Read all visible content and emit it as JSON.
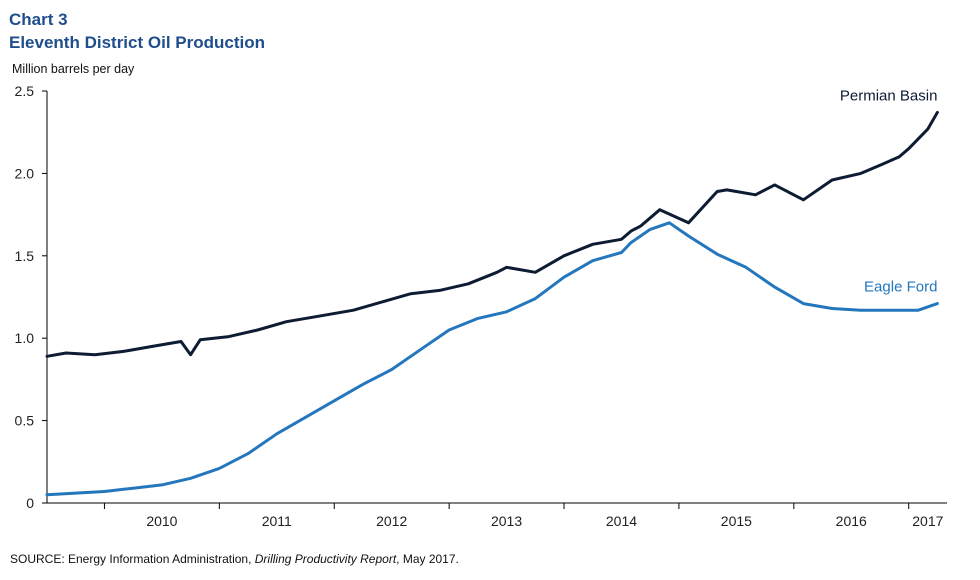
{
  "header": {
    "chart_number": "Chart 3",
    "title": "Eleventh District Oil Production"
  },
  "source": {
    "prefix": "SOURCE: Energy Information Administration, ",
    "report": "Drilling Productivity Report",
    "suffix": ", May 2017."
  },
  "colors": {
    "title": "#1f4e8c",
    "permian": "#0d1b33",
    "eagle_ford": "#2476bd",
    "axis": "#000000"
  },
  "chart_data": {
    "type": "line",
    "title": "Eleventh District Oil Production",
    "ylabel": "Million barrels per day",
    "xlabel": "",
    "ylim": [
      0,
      2.5
    ],
    "yticks": [
      "0",
      "0.5",
      "1.0",
      "1.5",
      "2.0",
      "2.5"
    ],
    "yticks_values": [
      0,
      0.5,
      1.0,
      1.5,
      2.0,
      2.5
    ],
    "xlim": [
      "2009-07",
      "2017-05"
    ],
    "x_categories": [
      "2010",
      "2011",
      "2012",
      "2013",
      "2014",
      "2015",
      "2016",
      "2017"
    ],
    "grid": false,
    "series": [
      {
        "name": "Permian Basin",
        "color": "#0d1b33",
        "x": [
          "2009-07",
          "2009-09",
          "2009-12",
          "2010-03",
          "2010-06",
          "2010-09",
          "2010-10",
          "2010-11",
          "2011-02",
          "2011-05",
          "2011-08",
          "2011-11",
          "2012-03",
          "2012-06",
          "2012-09",
          "2012-12",
          "2013-03",
          "2013-06",
          "2013-07",
          "2013-10",
          "2014-01",
          "2014-04",
          "2014-07",
          "2014-08",
          "2014-09",
          "2014-11",
          "2015-02",
          "2015-05",
          "2015-06",
          "2015-07",
          "2015-09",
          "2015-11",
          "2016-02",
          "2016-05",
          "2016-08",
          "2016-10",
          "2016-12",
          "2017-01",
          "2017-03",
          "2017-04"
        ],
        "values": [
          0.89,
          0.91,
          0.9,
          0.92,
          0.95,
          0.98,
          0.9,
          0.99,
          1.01,
          1.05,
          1.1,
          1.13,
          1.17,
          1.22,
          1.27,
          1.29,
          1.33,
          1.4,
          1.43,
          1.4,
          1.5,
          1.57,
          1.6,
          1.65,
          1.68,
          1.78,
          1.7,
          1.89,
          1.9,
          1.89,
          1.87,
          1.93,
          1.84,
          1.96,
          2.0,
          2.05,
          2.1,
          2.15,
          2.27,
          2.37
        ]
      },
      {
        "name": "Eagle Ford",
        "color": "#2476bd",
        "x": [
          "2009-07",
          "2009-10",
          "2010-01",
          "2010-04",
          "2010-07",
          "2010-10",
          "2011-01",
          "2011-04",
          "2011-07",
          "2011-10",
          "2012-01",
          "2012-04",
          "2012-07",
          "2012-10",
          "2013-01",
          "2013-04",
          "2013-07",
          "2013-10",
          "2014-01",
          "2014-04",
          "2014-07",
          "2014-08",
          "2014-10",
          "2014-12",
          "2015-02",
          "2015-05",
          "2015-08",
          "2015-11",
          "2016-02",
          "2016-05",
          "2016-08",
          "2016-11",
          "2017-02",
          "2017-04"
        ],
        "values": [
          0.05,
          0.06,
          0.07,
          0.09,
          0.11,
          0.15,
          0.21,
          0.3,
          0.42,
          0.52,
          0.62,
          0.72,
          0.81,
          0.93,
          1.05,
          1.12,
          1.16,
          1.24,
          1.37,
          1.47,
          1.52,
          1.58,
          1.66,
          1.7,
          1.62,
          1.51,
          1.43,
          1.31,
          1.21,
          1.18,
          1.17,
          1.17,
          1.17,
          1.21
        ]
      }
    ]
  }
}
